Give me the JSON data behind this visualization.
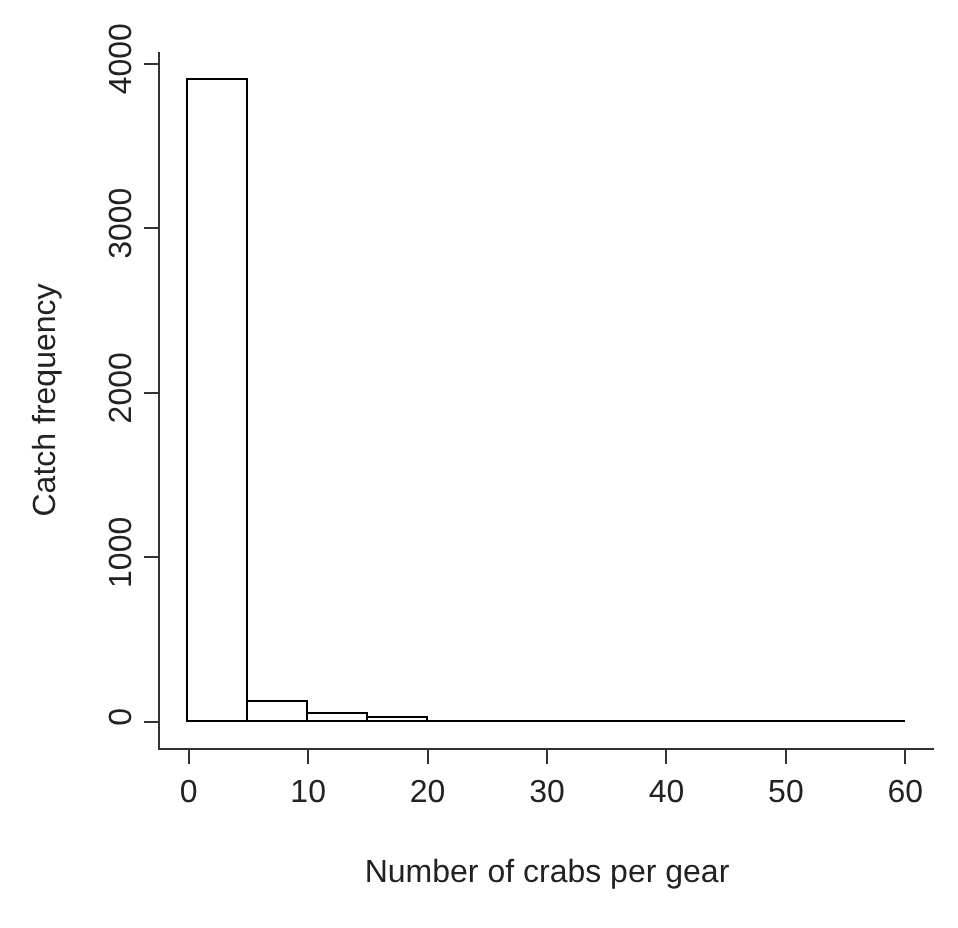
{
  "chart_data": {
    "type": "histogram",
    "xlabel": "Number of crabs per gear",
    "ylabel": "Catch frequency",
    "bins": [
      0,
      5,
      10,
      15,
      20,
      25,
      30,
      35,
      40,
      45,
      50,
      55,
      60
    ],
    "values": [
      3900,
      120,
      50,
      20,
      0,
      0,
      0,
      0,
      0,
      0,
      0,
      0
    ],
    "colors": [
      "#ffffff",
      "#ffffff",
      "#ffffff",
      "#ffffff",
      "#000000",
      "#000000",
      "#000000",
      "#000000",
      "#000000",
      "#000000",
      "#000000",
      "#000000"
    ],
    "xlim": [
      -2.4,
      62.4
    ],
    "ylim": [
      -160,
      4070
    ],
    "xticks": [
      0,
      10,
      20,
      30,
      40,
      50,
      60
    ],
    "yticks": [
      0,
      1000,
      2000,
      3000,
      4000
    ],
    "grid": false
  }
}
